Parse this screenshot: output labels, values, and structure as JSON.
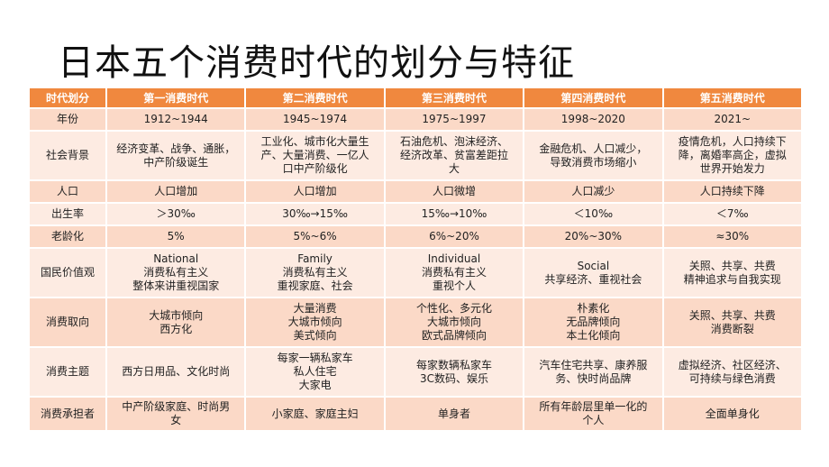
{
  "title": "日本五个消费时代的划分与特征",
  "table": {
    "headers": [
      "时代划分",
      "第一消费时代",
      "第二消费时代",
      "第三消费时代",
      "第四消费时代",
      "第五消费时代"
    ],
    "rows": [
      {
        "label": "年份",
        "cells": [
          "1912~1944",
          "1945~1974",
          "1975~1997",
          "1998~2020",
          "2021~"
        ]
      },
      {
        "label": "社会背景",
        "cells": [
          "经济变革、战争、通胀，\n中产阶级诞生",
          "工业化、城市化大量生\n产、大量消费、一亿人\n口中产阶级化",
          "石油危机、泡沫经济、\n经济改革、贫富差距拉\n大",
          "金融危机、人口减少，\n导致消费市场缩小",
          "疫情危机，人口持续下\n降，离婚率高企，虚拟\n世界开始发力"
        ]
      },
      {
        "label": "人口",
        "cells": [
          "人口增加",
          "人口增加",
          "人口微增",
          "人口减少",
          "人口持续下降"
        ]
      },
      {
        "label": "出生率",
        "cells": [
          "＞30‰",
          "30‰→15‰",
          "15‰→10‰",
          "＜10‰",
          "＜7‰"
        ]
      },
      {
        "label": "老龄化",
        "cells": [
          "5%",
          "5%~6%",
          "6%~20%",
          "20%~30%",
          "≈30%"
        ]
      },
      {
        "label": "国民价值观",
        "cells": [
          "National\n消费私有主义\n整体来讲重视国家",
          "Family\n消费私有主义\n重视家庭、社会",
          "Individual\n消费私有主义\n重视个人",
          "Social\n共享经济、重视社会",
          "关照、共享、共费\n精神追求与自我实现"
        ]
      },
      {
        "label": "消费取向",
        "cells": [
          "大城市倾向\n西方化",
          "大量消费\n大城市倾向\n美式倾向",
          "个性化、多元化\n大城市倾向\n欧式品牌倾向",
          "朴素化\n无品牌倾向\n本土化倾向",
          "关照、共享、共费\n消费断裂"
        ]
      },
      {
        "label": "消费主题",
        "cells": [
          "西方日用品、文化时尚",
          "每家一辆私家车\n私人住宅\n大家电",
          "每家数辆私家车\n3C数码、娱乐",
          "汽车住宅共享、康养服\n务、快时尚品牌",
          "虚拟经济、社区经济、\n可持续与绿色消费"
        ]
      },
      {
        "label": "消费承担者",
        "cells": [
          "中产阶级家庭、时尚男\n女",
          "小家庭、家庭主妇",
          "单身者",
          "所有年龄层里单一化的\n个人",
          "全面单身化"
        ]
      }
    ]
  }
}
